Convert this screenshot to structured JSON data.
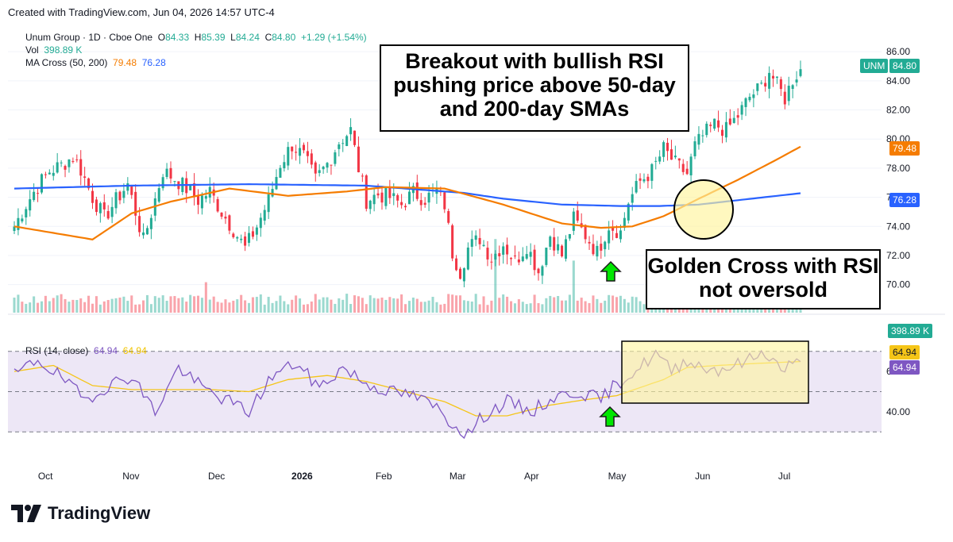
{
  "header": {
    "created_text": "Created with TradingView.com, Jun 04, 2026 14:57 UTC-4"
  },
  "legend": {
    "symbol": "Unum Group · 1D · Cboe One",
    "o_label": "O",
    "o_value": "84.33",
    "h_label": "H",
    "h_value": "85.39",
    "l_label": "L",
    "l_value": "84.24",
    "c_label": "C",
    "c_value": "84.80",
    "change": "+1.29 (+1.54%)",
    "vol_label": "Vol",
    "vol_value": "398.89 K",
    "ma_label": "MA Cross (50, 200)",
    "ma50_value": "79.48",
    "ma200_value": "76.28",
    "rsi_label": "RSI (14, close)",
    "rsi_value": "64.94",
    "rsi_ma_value": "64.94"
  },
  "price_scale": {
    "ticks": [
      "86.00",
      "84.00",
      "82.00",
      "80.00",
      "78.00",
      "76.00",
      "74.00",
      "72.00",
      "70.00"
    ],
    "last_symbol": "UNM",
    "last_price": "84.80",
    "ma50_label": "79.48",
    "ma200_label": "76.28",
    "volume_label": "398.89 K"
  },
  "rsi_scale": {
    "ticks": [
      "60.00",
      "40.00"
    ],
    "rsi_label": "64.94",
    "rsi_ma_label": "64.94"
  },
  "x_axis": {
    "ticks": [
      "Oct",
      "Nov",
      "Dec",
      "2026",
      "Feb",
      "Mar",
      "Apr",
      "May",
      "Jun",
      "Jul"
    ]
  },
  "annotations": {
    "breakout": "Breakout with bullish RSI pushing price above 50-day and 200-day SMAs",
    "golden_cross": "Golden Cross with RSI not oversold"
  },
  "footer": {
    "brand": "TradingView"
  },
  "colors": {
    "up": "#22ab94",
    "down": "#f23645",
    "ma50": "#f57c00",
    "ma200": "#2962ff",
    "rsi": "#7e57c2",
    "rsi_ma": "#f5c518",
    "rsi_band": "#ede7f6",
    "highlight": "#fff59d"
  },
  "chart_data": {
    "type": "candlestick",
    "symbol": "UNM",
    "interval": "1D",
    "ylim": [
      69,
      86.5
    ],
    "rsi_ylim": [
      25,
      75
    ],
    "rsi_bands": [
      70,
      50,
      30
    ],
    "x_months": [
      "Oct",
      "Nov",
      "Dec",
      "2026",
      "Feb",
      "Mar",
      "Apr",
      "May",
      "Jun",
      "Jul"
    ],
    "close_anchors": [
      [
        0,
        74.0
      ],
      [
        3,
        75.5
      ],
      [
        6,
        76.8
      ],
      [
        9,
        77.8
      ],
      [
        12,
        78.2
      ],
      [
        15,
        78.8
      ],
      [
        17,
        77.9
      ],
      [
        20,
        76.0
      ],
      [
        23,
        74.6
      ],
      [
        26,
        75.8
      ],
      [
        29,
        76.9
      ],
      [
        31,
        75.0
      ],
      [
        33,
        73.0
      ],
      [
        35,
        74.9
      ],
      [
        38,
        77.8
      ],
      [
        41,
        77.3
      ],
      [
        44,
        76.6
      ],
      [
        47,
        75.8
      ],
      [
        50,
        76.4
      ],
      [
        53,
        75.0
      ],
      [
        56,
        73.8
      ],
      [
        59,
        72.5
      ],
      [
        62,
        74.0
      ],
      [
        65,
        75.8
      ],
      [
        68,
        78.3
      ],
      [
        71,
        79.6
      ],
      [
        74,
        78.8
      ],
      [
        77,
        77.2
      ],
      [
        80,
        78.3
      ],
      [
        83,
        79.8
      ],
      [
        86,
        80.6
      ],
      [
        88,
        78.0
      ],
      [
        90,
        75.8
      ],
      [
        93,
        76.2
      ],
      [
        96,
        76.0
      ],
      [
        99,
        75.5
      ],
      [
        102,
        76.3
      ],
      [
        105,
        75.9
      ],
      [
        108,
        76.4
      ],
      [
        110,
        75.5
      ],
      [
        112,
        72.2
      ],
      [
        114,
        70.9
      ],
      [
        116,
        72.5
      ],
      [
        119,
        73.2
      ],
      [
        122,
        71.8
      ],
      [
        125,
        72.8
      ],
      [
        128,
        71.6
      ],
      [
        131,
        72.7
      ],
      [
        134,
        70.9
      ],
      [
        137,
        73.4
      ],
      [
        140,
        72.0
      ],
      [
        143,
        74.5
      ],
      [
        146,
        73.4
      ],
      [
        149,
        72.2
      ],
      [
        152,
        74.1
      ],
      [
        155,
        73.6
      ],
      [
        157,
        75.7
      ],
      [
        160,
        77.1
      ],
      [
        163,
        77.8
      ],
      [
        166,
        79.3
      ],
      [
        169,
        78.3
      ],
      [
        172,
        77.6
      ],
      [
        174,
        79.5
      ],
      [
        176,
        80.2
      ],
      [
        179,
        81.0
      ],
      [
        182,
        80.6
      ],
      [
        185,
        81.6
      ],
      [
        188,
        82.9
      ],
      [
        191,
        83.6
      ],
      [
        193,
        84.7
      ],
      [
        195,
        83.7
      ],
      [
        197,
        82.8
      ],
      [
        199,
        84.1
      ],
      [
        201,
        84.8
      ]
    ],
    "ma50_anchors": [
      [
        0,
        74.0
      ],
      [
        20,
        73.1
      ],
      [
        30,
        74.9
      ],
      [
        40,
        75.7
      ],
      [
        55,
        76.6
      ],
      [
        70,
        76.1
      ],
      [
        85,
        76.4
      ],
      [
        95,
        76.7
      ],
      [
        110,
        76.6
      ],
      [
        125,
        75.5
      ],
      [
        140,
        74.2
      ],
      [
        150,
        73.9
      ],
      [
        158,
        74.0
      ],
      [
        166,
        74.7
      ],
      [
        175,
        75.9
      ],
      [
        185,
        77.2
      ],
      [
        195,
        78.6
      ],
      [
        201,
        79.48
      ]
    ],
    "ma200_anchors": [
      [
        0,
        76.6
      ],
      [
        30,
        76.8
      ],
      [
        60,
        76.9
      ],
      [
        90,
        76.8
      ],
      [
        100,
        76.6
      ],
      [
        115,
        76.3
      ],
      [
        125,
        75.9
      ],
      [
        140,
        75.5
      ],
      [
        155,
        75.4
      ],
      [
        165,
        75.4
      ],
      [
        175,
        75.5
      ],
      [
        185,
        75.8
      ],
      [
        201,
        76.28
      ]
    ],
    "rsi_anchors": [
      [
        0,
        58
      ],
      [
        6,
        66
      ],
      [
        12,
        57
      ],
      [
        18,
        46
      ],
      [
        24,
        53
      ],
      [
        30,
        58
      ],
      [
        36,
        40
      ],
      [
        42,
        62
      ],
      [
        48,
        52
      ],
      [
        54,
        46
      ],
      [
        60,
        40
      ],
      [
        66,
        58
      ],
      [
        72,
        64
      ],
      [
        78,
        52
      ],
      [
        84,
        62
      ],
      [
        90,
        54
      ],
      [
        96,
        50
      ],
      [
        102,
        48
      ],
      [
        108,
        42
      ],
      [
        112,
        34
      ],
      [
        116,
        29
      ],
      [
        120,
        38
      ],
      [
        126,
        45
      ],
      [
        132,
        40
      ],
      [
        138,
        47
      ],
      [
        144,
        50
      ],
      [
        150,
        46
      ],
      [
        154,
        54
      ],
      [
        157,
        58
      ],
      [
        160,
        62
      ],
      [
        164,
        69
      ],
      [
        168,
        60
      ],
      [
        172,
        66
      ],
      [
        176,
        62
      ],
      [
        180,
        61
      ],
      [
        186,
        64
      ],
      [
        192,
        70
      ],
      [
        196,
        61
      ],
      [
        201,
        64.94
      ]
    ],
    "rsi_ma_anchors": [
      [
        0,
        60
      ],
      [
        10,
        63
      ],
      [
        20,
        53
      ],
      [
        30,
        51
      ],
      [
        40,
        51
      ],
      [
        50,
        51
      ],
      [
        60,
        50
      ],
      [
        70,
        56
      ],
      [
        80,
        58
      ],
      [
        90,
        55
      ],
      [
        100,
        50
      ],
      [
        110,
        45
      ],
      [
        118,
        38
      ],
      [
        126,
        38
      ],
      [
        136,
        43
      ],
      [
        146,
        46
      ],
      [
        154,
        48
      ],
      [
        160,
        52
      ],
      [
        166,
        56
      ],
      [
        172,
        62
      ],
      [
        180,
        63
      ],
      [
        190,
        64
      ],
      [
        201,
        64.94
      ]
    ],
    "volume_spikes": [
      [
        49,
        2.4
      ],
      [
        123,
        5.8
      ],
      [
        143,
        4.1
      ]
    ],
    "last": {
      "open": 84.33,
      "high": 85.39,
      "low": 84.24,
      "close": 84.8,
      "change": 1.29,
      "change_pct": 1.54,
      "volume_k": 398.89
    }
  }
}
